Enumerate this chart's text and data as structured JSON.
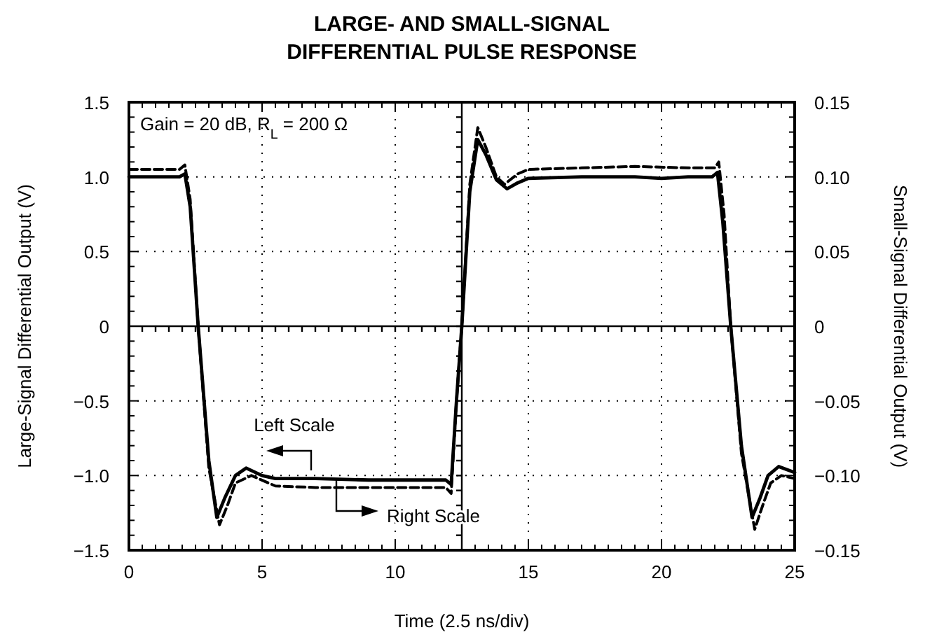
{
  "chart_data": {
    "type": "line",
    "title": "LARGE- AND SMALL-SIGNAL DIFFERENTIAL PULSE RESPONSE",
    "xlabel": "Time (2.5 ns/div)",
    "ylabel": "Large-Signal Differential Output (V)",
    "y2label": "Small-Signal Differential Output (V)",
    "annotations": [
      "Gain = 20 dB, R$_{L}$ = 200 Ω",
      "Left Scale",
      "Right Scale"
    ],
    "series": [
      {
        "color": "#000000",
        "line_style": "solid",
        "x": [
          0,
          1,
          1.9,
          2.1,
          2.3,
          2.6,
          3.0,
          3.3,
          3.6,
          4.0,
          4.4,
          5.0,
          5.5,
          7,
          9,
          11,
          11.9,
          12.1,
          12.3,
          12.5,
          12.8,
          13.1,
          13.4,
          13.8,
          14.2,
          14.6,
          15,
          17,
          19,
          20,
          21,
          21.9,
          22.1,
          22.3,
          22.6,
          23,
          23.4,
          23.7,
          24,
          24.4,
          25
        ],
        "values": [
          1.0,
          1.0,
          1.0,
          1.02,
          0.8,
          0,
          -0.9,
          -1.28,
          -1.15,
          -1.0,
          -0.95,
          -1.0,
          -1.02,
          -1.02,
          -1.03,
          -1.03,
          -1.03,
          -1.06,
          -0.5,
          0,
          0.9,
          1.25,
          1.15,
          0.98,
          0.92,
          0.96,
          0.99,
          1.0,
          1.0,
          0.99,
          1.0,
          1.0,
          1.03,
          0.7,
          0,
          -0.8,
          -1.28,
          -1.15,
          -1.0,
          -0.94,
          -0.98
        ]
      },
      {
        "color": "#000000",
        "line_style": "dashed",
        "axis": "y2",
        "x": [
          0,
          1.9,
          2.1,
          2.3,
          2.6,
          3.0,
          3.4,
          3.7,
          4.0,
          4.6,
          5.5,
          7,
          9,
          11,
          11.9,
          12.1,
          12.3,
          12.5,
          12.8,
          13.1,
          13.4,
          13.8,
          14.1,
          14.6,
          15,
          17,
          19,
          21,
          22,
          22.15,
          22.35,
          22.6,
          23,
          23.5,
          23.8,
          24.1,
          24.5,
          25
        ],
        "values": [
          0.105,
          0.105,
          0.108,
          0.085,
          0,
          -0.095,
          -0.133,
          -0.12,
          -0.105,
          -0.1,
          -0.107,
          -0.108,
          -0.108,
          -0.108,
          -0.108,
          -0.112,
          -0.05,
          0,
          0.095,
          0.133,
          0.12,
          0.1,
          0.095,
          0.102,
          0.105,
          0.106,
          0.107,
          0.106,
          0.106,
          0.11,
          0.075,
          0,
          -0.085,
          -0.136,
          -0.12,
          -0.105,
          -0.1,
          -0.102
        ]
      }
    ],
    "xlim": [
      0,
      25
    ],
    "xticks": [
      0,
      {
        "value": 0.5,
        "label": null
      },
      {
        "value": 1,
        "label": null
      },
      {
        "value": 1.5,
        "label": null
      },
      {
        "value": 2,
        "label": null
      },
      {
        "value": 2.5,
        "label": null
      },
      {
        "value": 3,
        "label": null
      },
      {
        "value": 3.5,
        "label": null
      },
      {
        "value": 4,
        "label": null
      },
      {
        "value": 4.5,
        "label": null
      },
      5,
      {
        "value": 5.5,
        "label": null
      },
      {
        "value": 6,
        "label": null
      },
      {
        "value": 6.5,
        "label": null
      },
      {
        "value": 7,
        "label": null
      },
      {
        "value": 7.5,
        "label": null
      },
      {
        "value": 8,
        "label": null
      },
      {
        "value": 8.5,
        "label": null
      },
      {
        "value": 9,
        "label": null
      },
      {
        "value": 9.5,
        "label": null
      },
      10,
      {
        "value": 10.5,
        "label": null
      },
      {
        "value": 11,
        "label": null
      },
      {
        "value": 11.5,
        "label": null
      },
      {
        "value": 12,
        "label": null
      },
      {
        "value": 12.5,
        "label": null
      },
      {
        "value": 13,
        "label": null
      },
      {
        "value": 13.5,
        "label": null
      },
      {
        "value": 14,
        "label": null
      },
      {
        "value": 14.5,
        "label": null
      },
      15,
      {
        "value": 15.5,
        "label": null
      },
      {
        "value": 16,
        "label": null
      },
      {
        "value": 16.5,
        "label": null
      },
      {
        "value": 17,
        "label": null
      },
      {
        "value": 17.5,
        "label": null
      },
      {
        "value": 18,
        "label": null
      },
      {
        "value": 18.5,
        "label": null
      },
      {
        "value": 19,
        "label": null
      },
      {
        "value": 19.5,
        "label": null
      },
      20,
      {
        "value": 20.5,
        "label": null
      },
      {
        "value": 21,
        "label": null
      },
      {
        "value": 21.5,
        "label": null
      },
      {
        "value": 22,
        "label": null
      },
      {
        "value": 22.5,
        "label": null
      },
      {
        "value": 23,
        "label": null
      },
      {
        "value": 23.5,
        "label": null
      },
      {
        "value": 24,
        "label": null
      },
      {
        "value": 24.5,
        "label": null
      },
      25
    ],
    "ylim": [
      -1.5,
      1.5
    ],
    "yticks": [
      {
        "value": -1.5,
        "label": "−1.5"
      },
      {
        "value": -1.4,
        "label": null
      },
      {
        "value": -1.3,
        "label": null
      },
      {
        "value": -1.2,
        "label": null
      },
      {
        "value": -1.1,
        "label": null
      },
      {
        "value": -1.0,
        "label": "−1.0"
      },
      {
        "value": -0.9,
        "label": null
      },
      {
        "value": -0.8,
        "label": null
      },
      {
        "value": -0.7,
        "label": null
      },
      {
        "value": -0.6,
        "label": null
      },
      {
        "value": -0.5,
        "label": "−0.5"
      },
      {
        "value": -0.4,
        "label": null
      },
      {
        "value": -0.3,
        "label": null
      },
      {
        "value": -0.2,
        "label": null
      },
      {
        "value": -0.1,
        "label": null
      },
      0,
      {
        "value": 0.1,
        "label": null
      },
      {
        "value": 0.2,
        "label": null
      },
      {
        "value": 0.3,
        "label": null
      },
      {
        "value": 0.4,
        "label": null
      },
      0.5,
      {
        "value": 0.6,
        "label": null
      },
      {
        "value": 0.7,
        "label": null
      },
      {
        "value": 0.8,
        "label": null
      },
      {
        "value": 0.9,
        "label": null
      },
      {
        "value": 1.0,
        "label": "1.0"
      },
      {
        "value": 1.1,
        "label": null
      },
      {
        "value": 1.2,
        "label": null
      },
      {
        "value": 1.3,
        "label": null
      },
      {
        "value": 1.4,
        "label": null
      },
      1.5
    ],
    "y2lim": [
      -0.15,
      0.15
    ],
    "y2ticks": [
      {
        "value": -0.15,
        "label": "−0.15"
      },
      {
        "value": -0.14,
        "label": null
      },
      {
        "value": -0.13,
        "label": null
      },
      {
        "value": -0.12,
        "label": null
      },
      {
        "value": -0.11,
        "label": null
      },
      {
        "value": -0.1,
        "label": "−0.10"
      },
      {
        "value": -0.09,
        "label": null
      },
      {
        "value": -0.08,
        "label": null
      },
      {
        "value": -0.07,
        "label": null
      },
      {
        "value": -0.06,
        "label": null
      },
      {
        "value": -0.05,
        "label": "−0.05"
      },
      {
        "value": -0.04,
        "label": null
      },
      {
        "value": -0.03,
        "label": null
      },
      {
        "value": -0.02,
        "label": null
      },
      {
        "value": -0.01,
        "label": null
      },
      0,
      {
        "value": 0.01,
        "label": null
      },
      {
        "value": 0.02,
        "label": null
      },
      {
        "value": 0.03,
        "label": null
      },
      {
        "value": 0.04,
        "label": null
      },
      0.05,
      {
        "value": 0.06,
        "label": null
      },
      {
        "value": 0.07,
        "label": null
      },
      {
        "value": 0.08,
        "label": null
      },
      {
        "value": 0.09,
        "label": null
      },
      {
        "value": 0.1,
        "label": "0.10"
      },
      {
        "value": 0.11,
        "label": null
      },
      {
        "value": 0.12,
        "label": null
      },
      {
        "value": 0.13,
        "label": null
      },
      {
        "value": 0.14,
        "label": null
      },
      0.15
    ],
    "grid": true
  }
}
